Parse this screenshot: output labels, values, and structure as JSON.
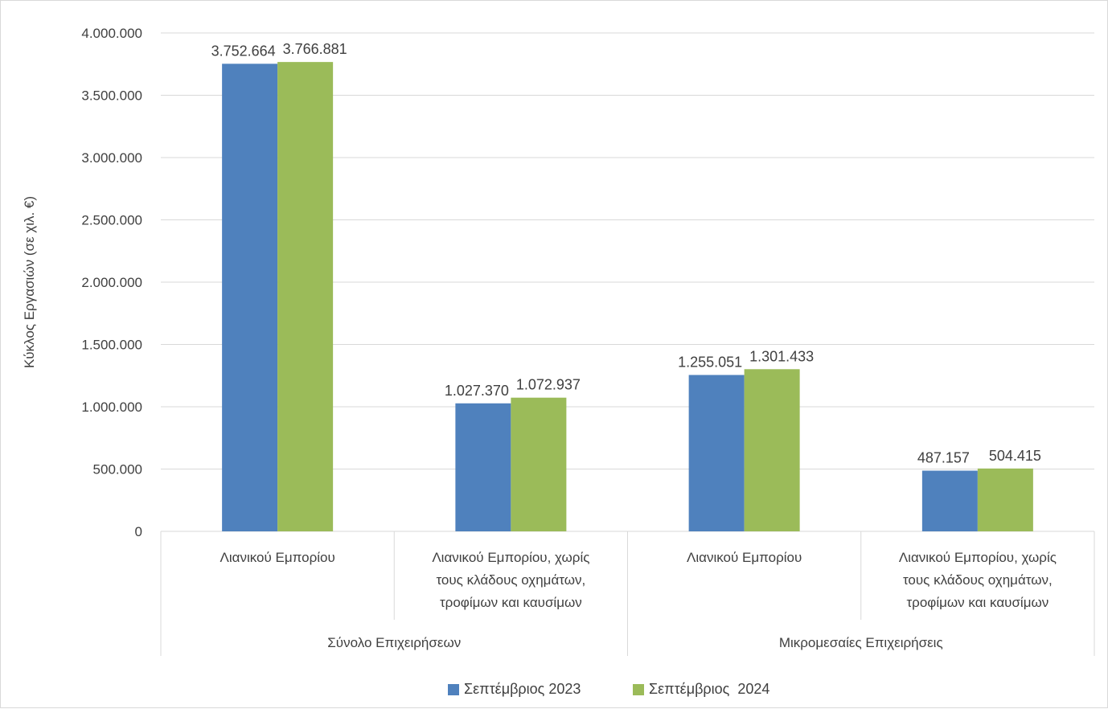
{
  "chart_data": {
    "type": "bar",
    "ylabel": "Κύκλος Εργασιών (σε χιλ. €)",
    "xlabel": "",
    "ylim": [
      0,
      4000000
    ],
    "yticks": [
      0,
      500000,
      1000000,
      1500000,
      2000000,
      2500000,
      3000000,
      3500000,
      4000000
    ],
    "ytick_labels": [
      "0",
      "500.000",
      "1.000.000",
      "1.500.000",
      "2.000.000",
      "2.500.000",
      "3.000.000",
      "3.500.000",
      "4.000.000"
    ],
    "grid": true,
    "groups": [
      {
        "label": "Σύνολο Επιχειρήσεων",
        "categories": [
          [
            "Λιανικού Εμπορίου"
          ],
          [
            "Λιανικού Εμπορίου, χωρίς",
            "τους κλάδους οχημάτων,",
            "τροφίμων και καυσίμων"
          ]
        ]
      },
      {
        "label": "Μικρομεσαίες Επιχειρήσεις",
        "categories": [
          [
            "Λιανικού Εμπορίου"
          ],
          [
            "Λιανικού Εμπορίου, χωρίς",
            "τους κλάδους οχημάτων,",
            "τροφίμων και καυσίμων"
          ]
        ]
      }
    ],
    "series": [
      {
        "name": "Σεπτέμβριος 2023",
        "color": "#4f81bd",
        "values": [
          3752664,
          1027370,
          1255051,
          487157
        ],
        "labels": [
          "3.752.664",
          "1.027.370",
          "1.255.051",
          "487.157"
        ]
      },
      {
        "name": "Σεπτέμβριος  2024",
        "color": "#9bbb59",
        "values": [
          3766881,
          1072937,
          1301433,
          504415
        ],
        "labels": [
          "3.766.881",
          "1.072.937",
          "1.301.433",
          "504.415"
        ]
      }
    ],
    "legend_position": "bottom"
  }
}
